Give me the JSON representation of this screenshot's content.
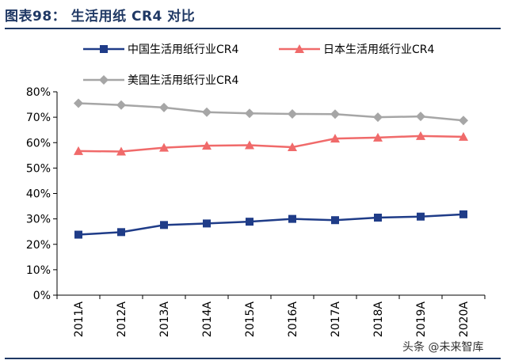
{
  "header": {
    "title": "图表98：  生活用纸 CR4 对比"
  },
  "watermark": "头条 @未来智库",
  "colors": {
    "china": "#1f3c88",
    "japan": "#f06a6a",
    "usa": "#a6a6a6",
    "rule": "#1f3864"
  },
  "chart_data": {
    "type": "line",
    "title": "生活用纸 CR4 对比",
    "categories": [
      "2011A",
      "2012A",
      "2013A",
      "2014A",
      "2015A",
      "2016A",
      "2017A",
      "2018A",
      "2019A",
      "2020A"
    ],
    "series": [
      {
        "name": "中国生活用纸行业CR4",
        "color": "#1f3c88",
        "marker": "square",
        "values": [
          23.8,
          24.8,
          27.6,
          28.2,
          28.9,
          30.0,
          29.5,
          30.5,
          30.9,
          31.8
        ]
      },
      {
        "name": "日本生活用纸行业CR4",
        "color": "#f06a6a",
        "marker": "triangle",
        "values": [
          56.7,
          56.5,
          58.0,
          58.8,
          59.0,
          58.2,
          61.6,
          62.0,
          62.6,
          62.3
        ]
      },
      {
        "name": "美国生活用纸行业CR4",
        "color": "#a6a6a6",
        "marker": "diamond",
        "values": [
          75.5,
          74.8,
          73.8,
          72.0,
          71.5,
          71.3,
          71.2,
          70.0,
          70.3,
          68.7
        ]
      }
    ],
    "ylim": [
      0,
      80
    ],
    "yticks": [
      0,
      10,
      20,
      30,
      40,
      50,
      60,
      70,
      80
    ],
    "ytick_labels": [
      "0%",
      "10%",
      "20%",
      "30%",
      "40%",
      "50%",
      "60%",
      "70%",
      "80%"
    ],
    "grid": false,
    "legend": "top"
  }
}
